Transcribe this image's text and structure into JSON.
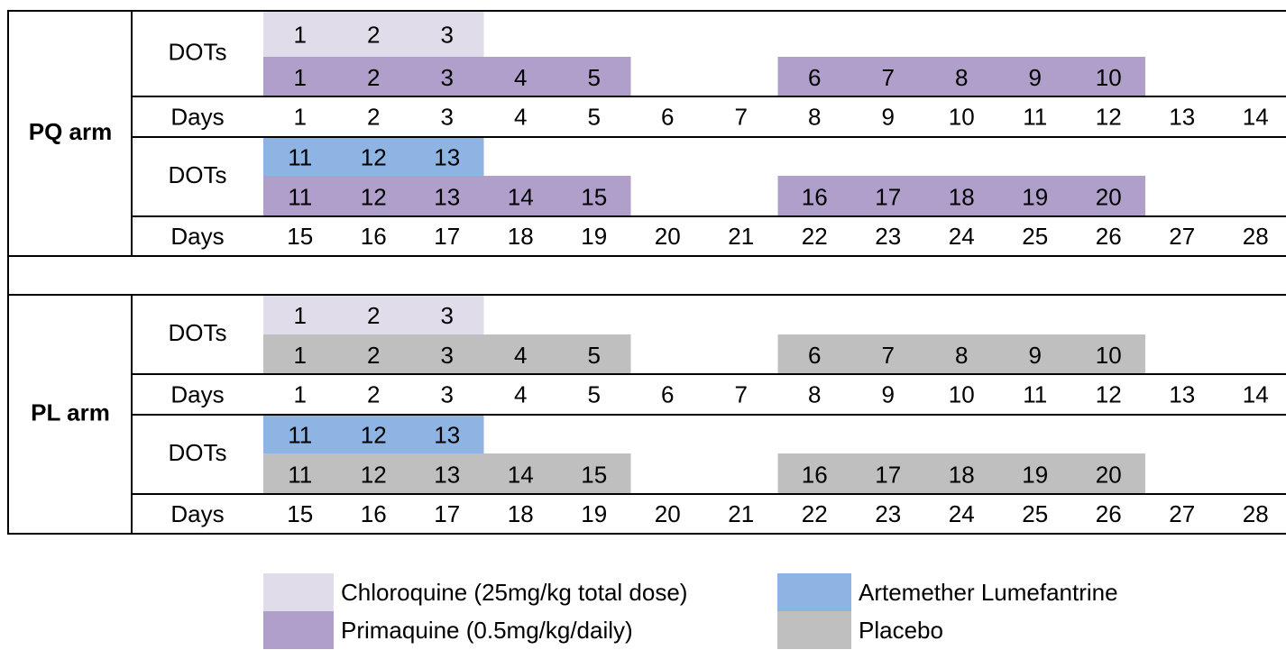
{
  "arms": [
    {
      "label": "PQ arm",
      "blocks": [
        {
          "label": "DOTs",
          "rows": [
            {
              "color": "#e1dcea",
              "doses": [
                1,
                2,
                3,
                null,
                null,
                null,
                null,
                null,
                null,
                null,
                null,
                null,
                null,
                null
              ]
            },
            {
              "color": "#b09fcb",
              "doses": [
                1,
                2,
                3,
                4,
                5,
                null,
                null,
                6,
                7,
                8,
                9,
                10,
                null,
                null
              ]
            }
          ],
          "days_label": "Days",
          "days": [
            1,
            2,
            3,
            4,
            5,
            6,
            7,
            8,
            9,
            10,
            11,
            12,
            13,
            14
          ]
        },
        {
          "label": "DOTs",
          "rows": [
            {
              "color": "#8eb4e3",
              "doses": [
                11,
                12,
                13,
                null,
                null,
                null,
                null,
                null,
                null,
                null,
                null,
                null,
                null,
                null
              ]
            },
            {
              "color": "#b09fcb",
              "doses": [
                11,
                12,
                13,
                14,
                15,
                null,
                null,
                16,
                17,
                18,
                19,
                20,
                null,
                null
              ]
            }
          ],
          "days_label": "Days",
          "days": [
            15,
            16,
            17,
            18,
            19,
            20,
            21,
            22,
            23,
            24,
            25,
            26,
            27,
            28
          ]
        }
      ]
    },
    {
      "label": "PL arm",
      "blocks": [
        {
          "label": "DOTs",
          "rows": [
            {
              "color": "#e1dcea",
              "doses": [
                1,
                2,
                3,
                null,
                null,
                null,
                null,
                null,
                null,
                null,
                null,
                null,
                null,
                null
              ]
            },
            {
              "color": "#bfbfbf",
              "doses": [
                1,
                2,
                3,
                4,
                5,
                null,
                null,
                6,
                7,
                8,
                9,
                10,
                null,
                null
              ]
            }
          ],
          "days_label": "Days",
          "days": [
            1,
            2,
            3,
            4,
            5,
            6,
            7,
            8,
            9,
            10,
            11,
            12,
            13,
            14
          ]
        },
        {
          "label": "DOTs",
          "rows": [
            {
              "color": "#8eb4e3",
              "doses": [
                11,
                12,
                13,
                null,
                null,
                null,
                null,
                null,
                null,
                null,
                null,
                null,
                null,
                null
              ]
            },
            {
              "color": "#bfbfbf",
              "doses": [
                11,
                12,
                13,
                14,
                15,
                null,
                null,
                16,
                17,
                18,
                19,
                20,
                null,
                null
              ]
            }
          ],
          "days_label": "Days",
          "days": [
            15,
            16,
            17,
            18,
            19,
            20,
            21,
            22,
            23,
            24,
            25,
            26,
            27,
            28
          ]
        }
      ]
    }
  ],
  "legend": [
    {
      "label": "Chloroquine (25mg/kg total dose)",
      "color": "#e1dcea"
    },
    {
      "label": "Primaquine (0.5mg/kg/daily)",
      "color": "#b09fcb"
    },
    {
      "label": "Artemether Lumefantrine",
      "color": "#8eb4e3"
    },
    {
      "label": "Placebo",
      "color": "#bfbfbf"
    }
  ]
}
